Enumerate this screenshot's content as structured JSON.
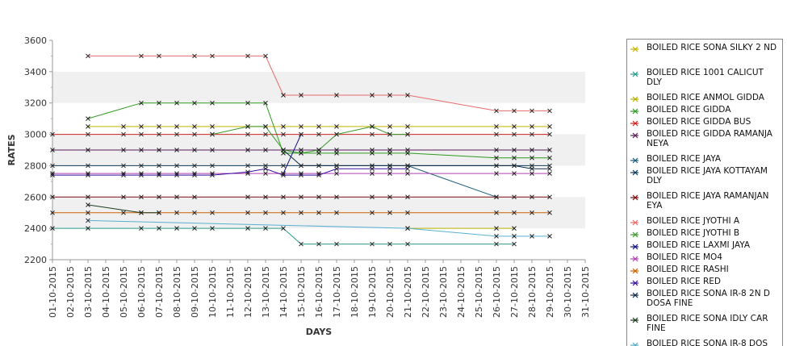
{
  "chart_data": {
    "type": "line",
    "xlabel": "DAYS",
    "ylabel": "RATES",
    "ylim": [
      2200,
      3600
    ],
    "yticks": [
      2200,
      2400,
      2600,
      2800,
      3000,
      3200,
      3400,
      3600
    ],
    "grid": "alternating horizontal bands",
    "legend_position": "right",
    "categories": [
      "01-10-2015",
      "02-10-2015",
      "03-10-2015",
      "04-10-2015",
      "05-10-2015",
      "06-10-2015",
      "07-10-2015",
      "08-10-2015",
      "09-10-2015",
      "10-10-2015",
      "11-10-2015",
      "12-10-2015",
      "13-10-2015",
      "14-10-2015",
      "15-10-2015",
      "16-10-2015",
      "17-10-2015",
      "18-10-2015",
      "19-10-2015",
      "20-10-2015",
      "21-10-2015",
      "22-10-2015",
      "23-10-2015",
      "24-10-2015",
      "25-10-2015",
      "26-10-2015",
      "27-10-2015",
      "28-10-2015",
      "29-10-2015",
      "30-10-2015",
      "31-10-2015"
    ],
    "series": [
      {
        "name": "BOILED RICE SONA SILKY 2 ND",
        "color": "#c8b400",
        "values": [
          null,
          null,
          3050,
          null,
          3050,
          3050,
          3050,
          3050,
          3050,
          3050,
          null,
          3050,
          3050,
          3050,
          3050,
          3050,
          3050,
          null,
          3050,
          3050,
          3050,
          null,
          null,
          null,
          null,
          3050,
          3050,
          3050,
          3050,
          null,
          null
        ]
      },
      {
        "name": "BOILED RICE 1001 CALICUT DLY",
        "color": "#2a9a8a",
        "values": [
          2400,
          null,
          2400,
          null,
          null,
          2400,
          2400,
          2400,
          2400,
          2400,
          null,
          2400,
          2400,
          2400,
          2300,
          2300,
          2300,
          null,
          2300,
          2300,
          2300,
          null,
          null,
          null,
          null,
          2300,
          2300,
          null,
          null,
          null,
          null
        ]
      },
      {
        "name": "BOILED RICE ANMOL GIDDA",
        "color": "#b8b000",
        "values": [
          null,
          null,
          null,
          null,
          null,
          null,
          null,
          null,
          null,
          null,
          null,
          null,
          null,
          null,
          null,
          null,
          null,
          null,
          null,
          null,
          2400,
          null,
          null,
          null,
          null,
          2400,
          2400,
          null,
          null,
          null,
          null
        ]
      },
      {
        "name": "BOILED RICE GIDDA",
        "color": "#2e9a1e",
        "values": [
          null,
          null,
          3100,
          null,
          null,
          3200,
          3200,
          3200,
          3200,
          3200,
          null,
          3200,
          3200,
          2880,
          2880,
          2880,
          2880,
          null,
          2880,
          2880,
          2880,
          null,
          null,
          null,
          null,
          2850,
          2850,
          2850,
          2850,
          null,
          null
        ]
      },
      {
        "name": "BOILED RICE GIDDA BUS",
        "color": "#cc2020",
        "values": [
          3000,
          null,
          3000,
          null,
          3000,
          3000,
          3000,
          3000,
          3000,
          3000,
          null,
          3000,
          3000,
          3000,
          3000,
          3000,
          3000,
          null,
          3000,
          3000,
          3000,
          null,
          null,
          null,
          null,
          3000,
          3000,
          3000,
          3000,
          null,
          null
        ]
      },
      {
        "name": "BOILED RICE GIDDA RAMANJA NEYA",
        "color": "#5a1a5a",
        "values": [
          2900,
          null,
          2900,
          null,
          2900,
          2900,
          2900,
          2900,
          2900,
          2900,
          null,
          2900,
          2900,
          2900,
          2900,
          2900,
          2900,
          null,
          2900,
          2900,
          2900,
          null,
          null,
          null,
          null,
          2900,
          2900,
          2900,
          2900,
          null,
          null
        ]
      },
      {
        "name": "BOILED RICE JAYA",
        "color": "#1a5a7a",
        "values": [
          null,
          null,
          null,
          null,
          null,
          null,
          null,
          null,
          null,
          null,
          null,
          null,
          null,
          null,
          null,
          null,
          null,
          null,
          null,
          null,
          2800,
          null,
          null,
          null,
          null,
          2600,
          null,
          null,
          null,
          null,
          null
        ]
      },
      {
        "name": "BOILED RICE JAYA KOTTAYAM DLY",
        "color": "#0a3a5a",
        "values": [
          2800,
          null,
          2800,
          null,
          2800,
          2800,
          2800,
          2800,
          2800,
          2800,
          null,
          2800,
          2800,
          2800,
          2800,
          2800,
          2800,
          null,
          2800,
          2800,
          2800,
          null,
          null,
          null,
          null,
          2800,
          2800,
          2800,
          2800,
          null,
          null
        ]
      },
      {
        "name": "BOILED RICE JAYA RAMANJAN EYA",
        "color": "#7a0a0a",
        "values": [
          2600,
          null,
          2600,
          null,
          2600,
          2600,
          2600,
          2600,
          2600,
          null,
          null,
          2600,
          2600,
          2600,
          2600,
          2600,
          2600,
          null,
          2600,
          2600,
          2600,
          null,
          null,
          null,
          null,
          2600,
          2600,
          2600,
          2600,
          null,
          null
        ]
      },
      {
        "name": "BOILED RICE JYOTHI A",
        "color": "#e86a6a",
        "values": [
          null,
          null,
          3500,
          null,
          null,
          3500,
          3500,
          null,
          3500,
          3500,
          null,
          3500,
          3500,
          3250,
          3250,
          null,
          3250,
          null,
          3250,
          3250,
          3250,
          null,
          null,
          null,
          null,
          3150,
          3150,
          3150,
          3150,
          null,
          null
        ]
      },
      {
        "name": "BOILED RICE JYOTHI B",
        "color": "#3a9a2a",
        "values": [
          null,
          null,
          null,
          null,
          null,
          null,
          null,
          null,
          null,
          3000,
          null,
          3050,
          3050,
          2900,
          2880,
          2900,
          3000,
          null,
          3050,
          3000,
          3000,
          null,
          null,
          null,
          null,
          null,
          null,
          null,
          null,
          null,
          null
        ]
      },
      {
        "name": "BOILED RICE LAXMI JAYA",
        "color": "#101080",
        "values": [
          null,
          null,
          null,
          null,
          null,
          null,
          null,
          null,
          null,
          null,
          null,
          null,
          null,
          2750,
          3000,
          null,
          null,
          null,
          null,
          null,
          null,
          null,
          null,
          null,
          null,
          null,
          null,
          null,
          null,
          null,
          null
        ]
      },
      {
        "name": "BOILED RICE MO4",
        "color": "#b040b0",
        "values": [
          2750,
          null,
          2750,
          null,
          2750,
          2750,
          2750,
          2750,
          2750,
          2750,
          null,
          2750,
          2750,
          2750,
          2750,
          2750,
          2750,
          null,
          2750,
          2750,
          2750,
          null,
          null,
          null,
          null,
          2750,
          2750,
          2750,
          2750,
          null,
          null
        ]
      },
      {
        "name": "BOILED RICE RASHI",
        "color": "#d06000",
        "values": [
          2500,
          null,
          2500,
          null,
          2500,
          2500,
          2500,
          2500,
          2500,
          2500,
          null,
          2500,
          2500,
          2500,
          2500,
          2500,
          2500,
          null,
          2500,
          2500,
          2500,
          null,
          null,
          null,
          null,
          2500,
          2500,
          2500,
          2500,
          null,
          null
        ]
      },
      {
        "name": "BOILED RICE RED",
        "color": "#3a10a0",
        "values": [
          2740,
          null,
          2740,
          null,
          2740,
          2740,
          2740,
          2740,
          2740,
          2740,
          null,
          2760,
          2780,
          2740,
          2740,
          2740,
          2780,
          null,
          2780,
          2780,
          2780,
          null,
          null,
          null,
          null,
          null,
          null,
          null,
          null,
          null,
          null
        ]
      },
      {
        "name": "BOILED RICE SONA  IR-8 2N D DOSA FINE",
        "color": "#0a2a4a",
        "values": [
          null,
          null,
          null,
          null,
          null,
          null,
          null,
          null,
          null,
          null,
          null,
          null,
          null,
          2900,
          2800,
          2800,
          2800,
          null,
          2800,
          2800,
          2800,
          null,
          null,
          null,
          null,
          2800,
          2800,
          2780,
          2780,
          null,
          null
        ]
      },
      {
        "name": "BOILED RICE SONA IDLY CAR FINE",
        "color": "#1a3a1a",
        "values": [
          null,
          null,
          2550,
          null,
          null,
          2500,
          2500,
          null,
          null,
          null,
          null,
          null,
          null,
          null,
          null,
          null,
          null,
          null,
          null,
          null,
          null,
          null,
          null,
          null,
          null,
          null,
          null,
          null,
          null,
          null,
          null
        ]
      },
      {
        "name": "BOILED RICE SONA IR-8 DOS",
        "color": "#5ab0d0",
        "values": [
          null,
          null,
          2450,
          null,
          null,
          null,
          null,
          null,
          null,
          null,
          null,
          null,
          null,
          null,
          null,
          null,
          null,
          null,
          null,
          null,
          2400,
          null,
          null,
          null,
          null,
          2350,
          2350,
          2350,
          2350,
          null,
          null
        ]
      }
    ]
  }
}
